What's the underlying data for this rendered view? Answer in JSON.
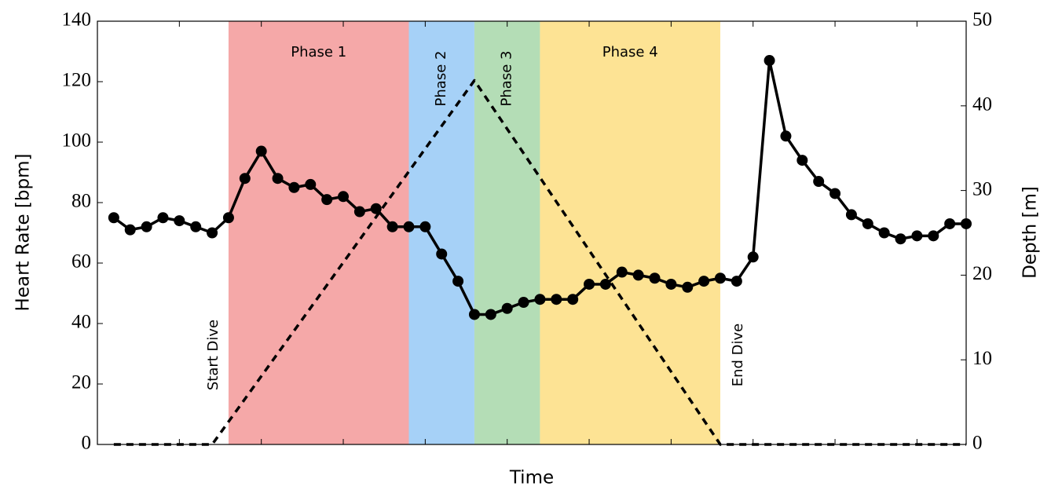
{
  "chart_data": {
    "type": "line",
    "xlabel": "Time",
    "ylabel": "Heart Rate [bpm]",
    "y2label": "Depth [m]",
    "xlim": [
      0,
      53
    ],
    "ylim": [
      0,
      140
    ],
    "y2lim": [
      0,
      50
    ],
    "xticks": [
      5,
      10,
      15,
      20,
      25,
      30,
      35,
      40,
      45,
      50
    ],
    "yticks": [
      0,
      20,
      40,
      60,
      80,
      100,
      120,
      140
    ],
    "y2ticks": [
      0,
      10,
      20,
      30,
      40,
      50
    ],
    "x": [
      1,
      2,
      3,
      4,
      5,
      6,
      7,
      8,
      9,
      10,
      11,
      12,
      13,
      14,
      15,
      16,
      17,
      18,
      19,
      20,
      21,
      22,
      23,
      24,
      25,
      26,
      27,
      28,
      29,
      30,
      31,
      32,
      33,
      34,
      35,
      36,
      37,
      38,
      39,
      40,
      41,
      42,
      43,
      44,
      45,
      46,
      47,
      48,
      49,
      50,
      51,
      52,
      53
    ],
    "series": [
      {
        "color": "#000000",
        "marker": true,
        "dashed": false,
        "values": [
          75,
          71,
          72,
          75,
          74,
          72,
          70,
          75,
          88,
          97,
          88,
          85,
          86,
          81,
          82,
          77,
          78,
          72,
          72,
          72,
          63,
          54,
          43,
          43,
          45,
          47,
          48,
          48,
          48,
          53,
          53,
          57,
          56,
          55,
          53,
          52,
          54,
          55,
          54,
          62,
          127,
          102,
          94,
          87,
          83,
          76,
          73,
          70,
          68,
          69,
          69,
          73,
          73
        ]
      },
      {
        "color": "#000000",
        "marker": false,
        "dashed": true,
        "axis": "y2",
        "x": [
          1,
          7,
          23,
          38,
          53
        ],
        "values": [
          0,
          0,
          43,
          0,
          0
        ]
      }
    ],
    "regions": [
      {
        "label": "Phase 1",
        "x": [
          8,
          19
        ],
        "color": "#f5a8a8",
        "rotated": false
      },
      {
        "label": "Phase 2",
        "x": [
          19,
          23
        ],
        "color": "#a6d1f7",
        "rotated": true
      },
      {
        "label": "Phase 3",
        "x": [
          23,
          27
        ],
        "color": "#b4ddb6",
        "rotated": true
      },
      {
        "label": "Phase 4",
        "x": [
          27,
          38
        ],
        "color": "#fde394",
        "rotated": false
      }
    ],
    "annotations": [
      {
        "text": "Start Dive",
        "x": 7
      },
      {
        "text": "End Dive",
        "x": 39
      }
    ]
  }
}
